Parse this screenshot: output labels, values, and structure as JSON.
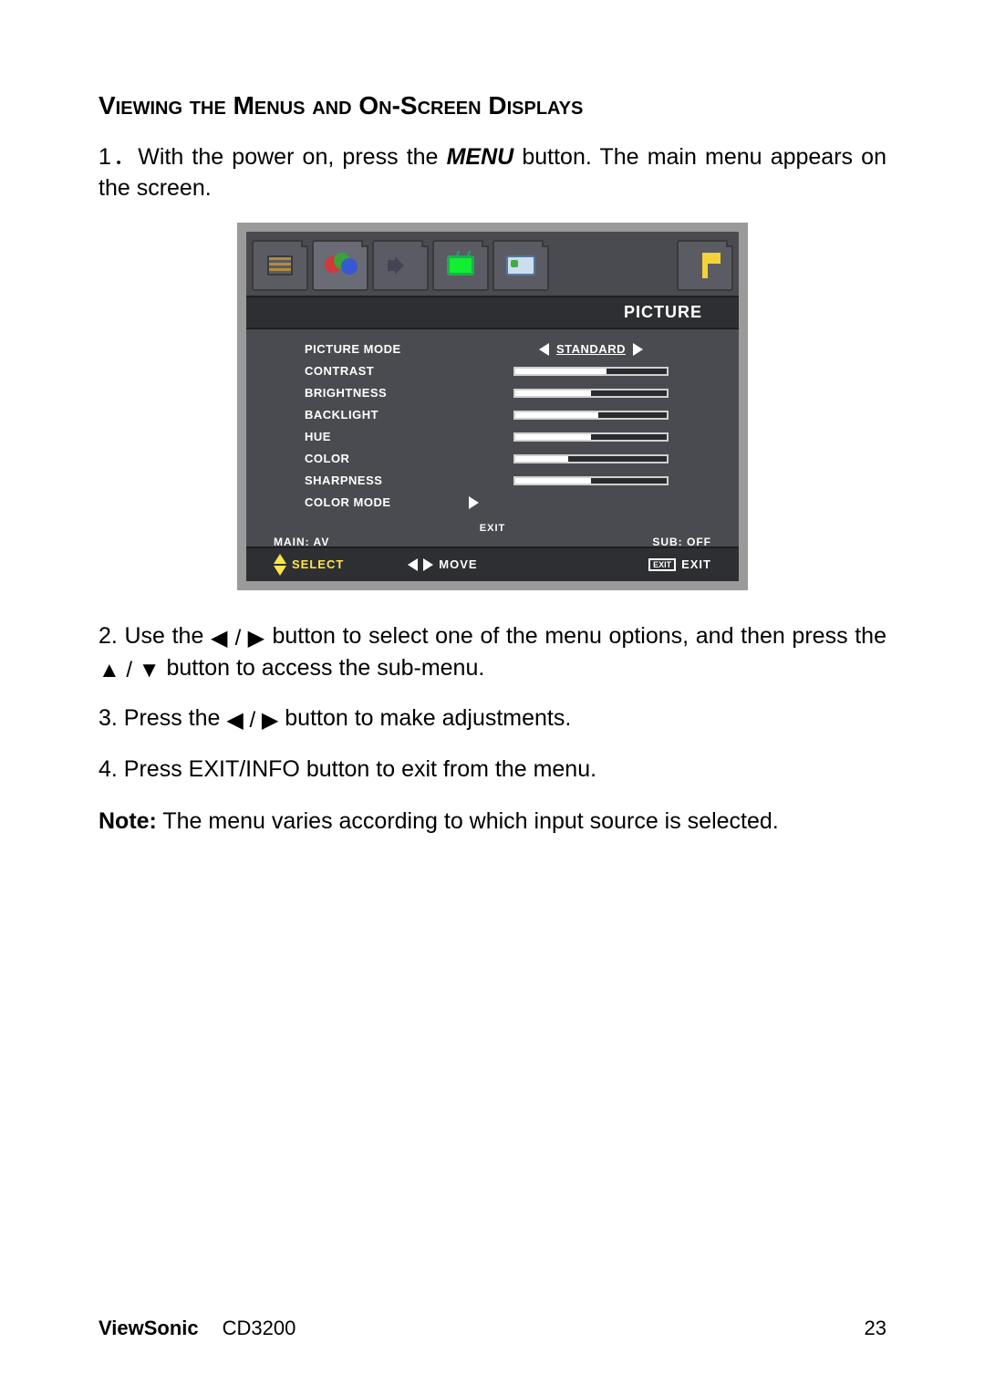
{
  "title": "Viewing the Menus and On-Screen Displays",
  "steps": {
    "s1_a": "1．With the power on, press the ",
    "s1_menu": "MENU",
    "s1_b": " button. The main menu appears on the screen.",
    "s2_a": "2. Use the ",
    "s2_b": " button to select one of the menu options, and then press the ",
    "s2_c": " button to access the sub-menu.",
    "s3_a": "3. Press the ",
    "s3_b": "   button to make adjustments.",
    "s4": "4. Press EXIT/INFO button to exit from the menu."
  },
  "note_label": "Note:",
  "note_text": " The menu varies according to which input source is selected.",
  "symbols": {
    "left": "◀",
    "right": "▶",
    "up": "▲",
    "down": "▼",
    "slash": " / "
  },
  "osd": {
    "header": "PICTURE",
    "tabs": [
      {
        "name": "picture-settings",
        "active": false
      },
      {
        "name": "color",
        "active": true
      },
      {
        "name": "audio",
        "active": false
      },
      {
        "name": "tv",
        "active": false
      },
      {
        "name": "card",
        "active": false
      },
      {
        "name": "language",
        "active": false
      }
    ],
    "rows": [
      {
        "label": "PICTURE  MODE",
        "type": "select",
        "value": "STANDARD"
      },
      {
        "label": "CONTRAST",
        "type": "slider",
        "fill": 0.6
      },
      {
        "label": "BRIGHTNESS",
        "type": "slider",
        "fill": 0.5
      },
      {
        "label": "BACKLIGHT",
        "type": "slider",
        "fill": 0.55
      },
      {
        "label": "HUE",
        "type": "slider",
        "fill": 0.5
      },
      {
        "label": "COLOR",
        "type": "slider",
        "fill": 0.35
      },
      {
        "label": "SHARPNESS",
        "type": "slider",
        "fill": 0.5
      },
      {
        "label": "COLOR MODE",
        "type": "arrow"
      }
    ],
    "exit_label": "EXIT",
    "status_left": "MAIN: AV",
    "status_right": "SUB: OFF",
    "footer": {
      "select": "SELECT",
      "move": "MOVE",
      "exit_box": "EXIT",
      "exit": "EXIT"
    },
    "colors": {
      "frame": "#9a9a9a",
      "body_bg": "#4a4b50",
      "header_bg": "#2e2f33",
      "text": "#ffffff",
      "accent": "#ffe54a"
    }
  },
  "footer": {
    "brand": "ViewSonic",
    "model": "CD3200",
    "page": "23"
  }
}
